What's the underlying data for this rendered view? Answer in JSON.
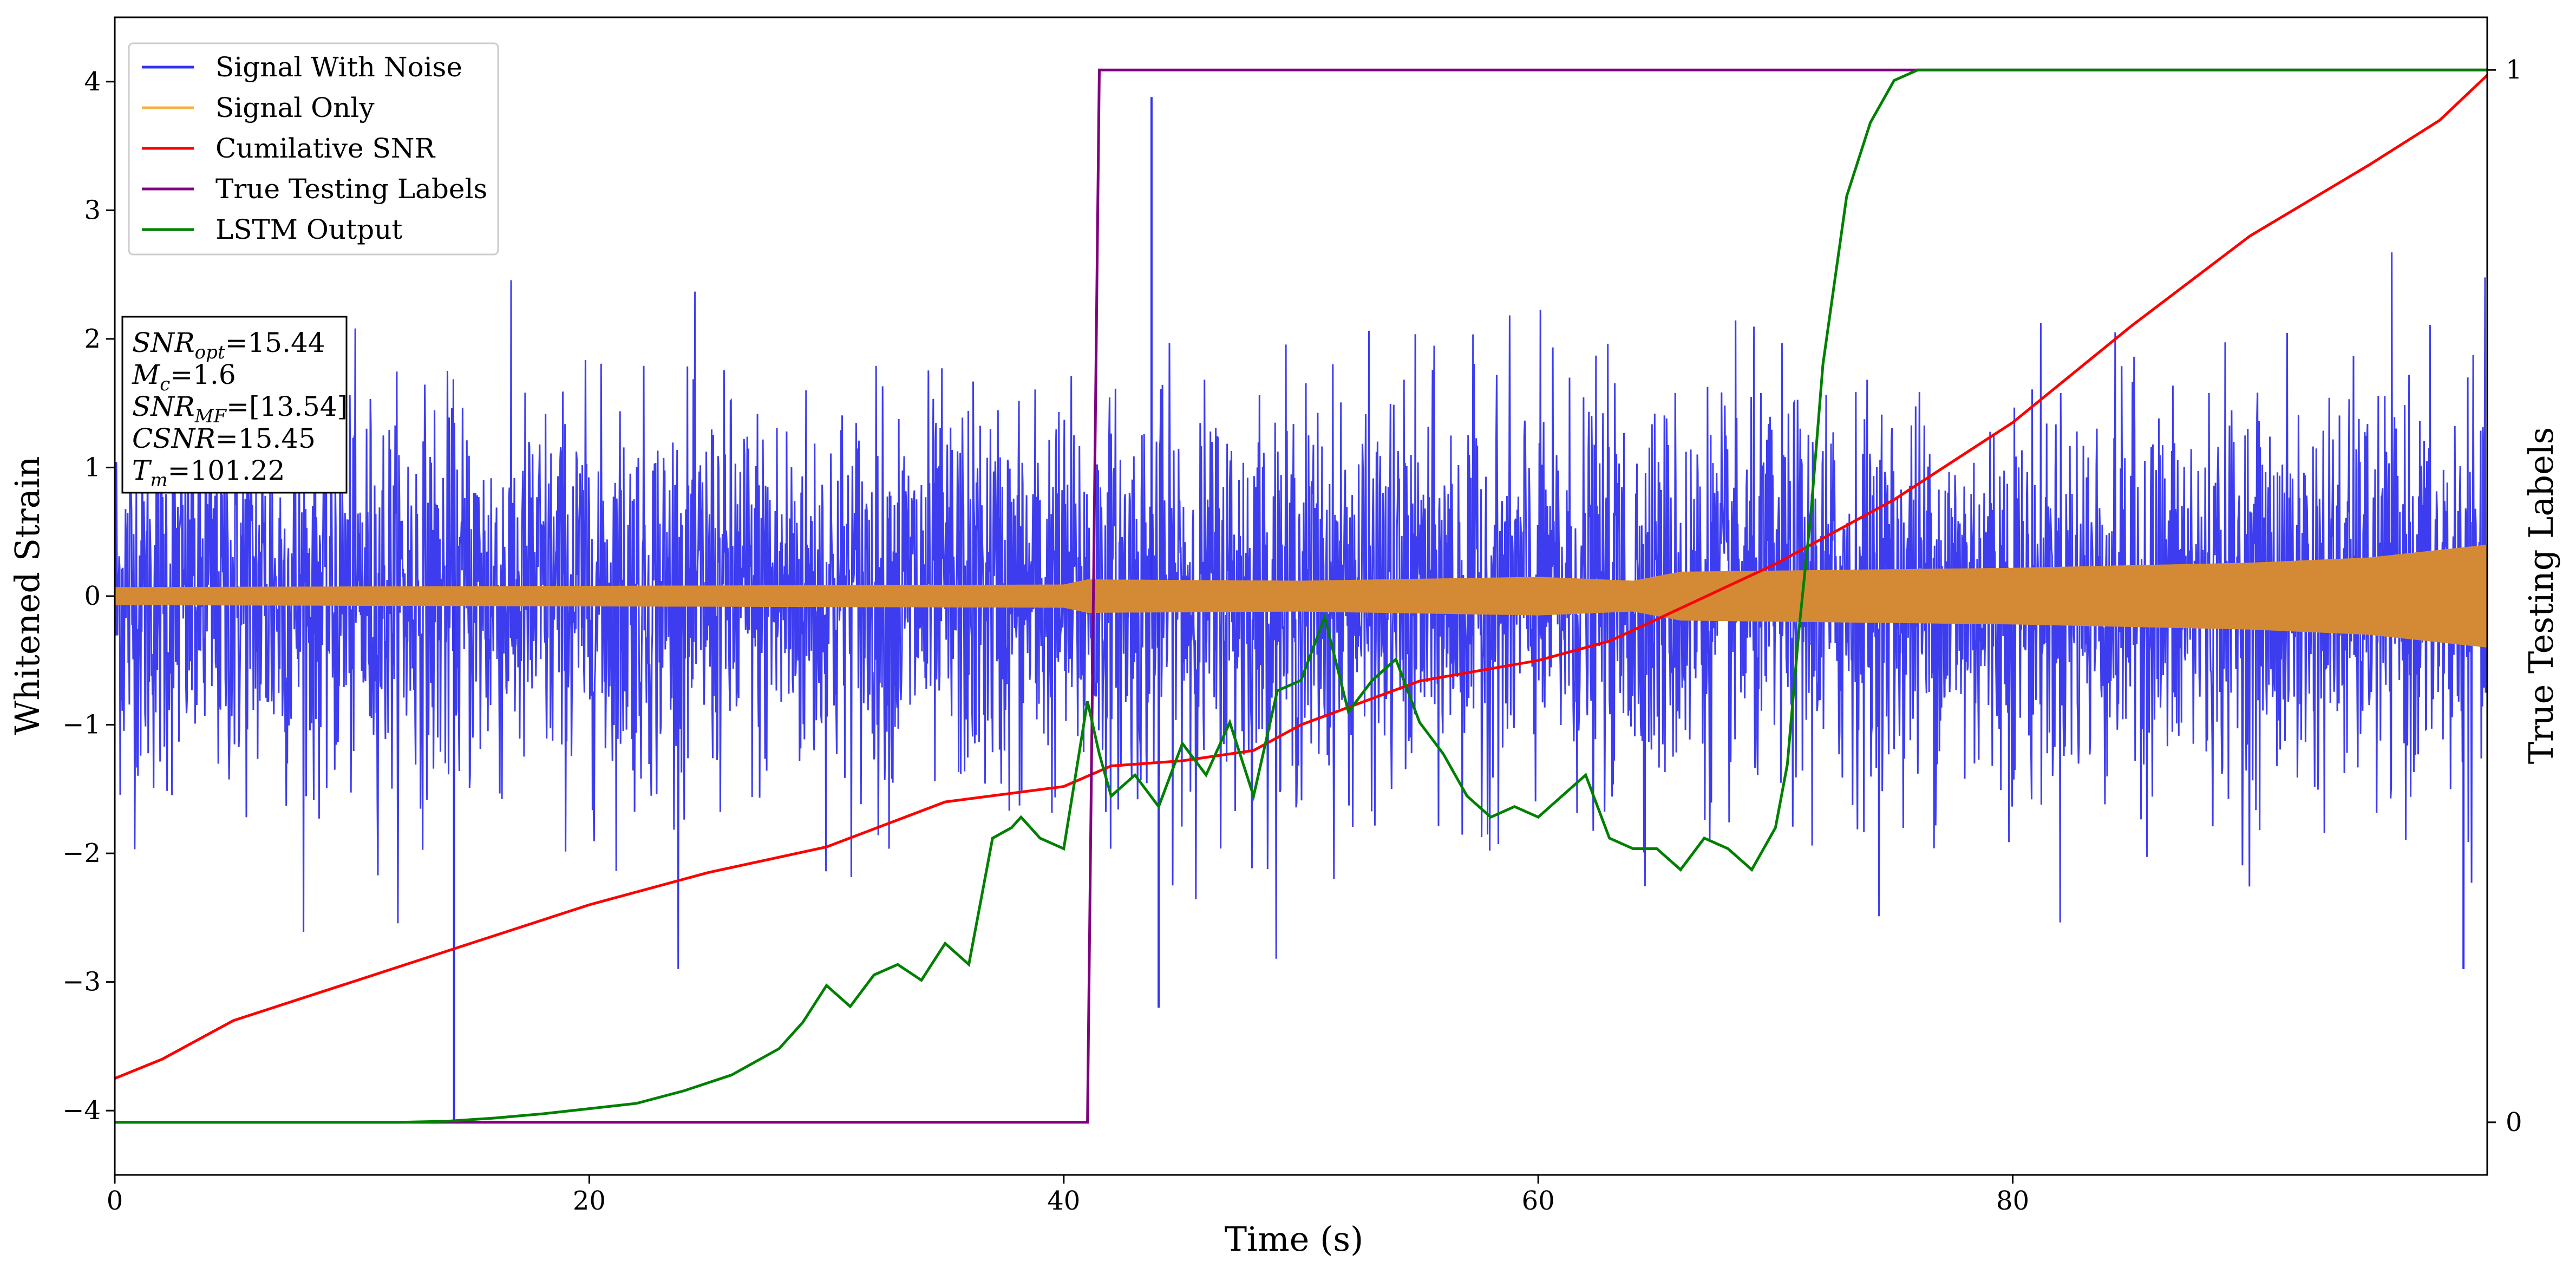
{
  "chart_data": {
    "type": "line",
    "title": "",
    "xlabel": "Time (s)",
    "ylabel_left": "Whitened Strain",
    "ylabel_right": "True Testing Labels",
    "xlim": [
      0,
      100
    ],
    "ylim_left": [
      -4.5,
      4.5
    ],
    "ylim_right": [
      -0.05,
      1.05
    ],
    "xticks": [
      "0",
      "20",
      "40",
      "60",
      "80"
    ],
    "yticks_left": [
      "−4",
      "−3",
      "−2",
      "−1",
      "0",
      "1",
      "2",
      "3",
      "4"
    ],
    "yticks_right": [
      "0",
      "1"
    ],
    "legend_placement": "upper-left",
    "legend": [
      {
        "name": "Signal With Noise",
        "color": "#3333ee"
      },
      {
        "name": "Signal Only",
        "color": "#f5b342"
      },
      {
        "name": "Cumilative SNR",
        "color": "#ff0000"
      },
      {
        "name": "True Testing Labels",
        "color": "#800080"
      },
      {
        "name": "LSTM Output",
        "color": "#008000"
      }
    ],
    "annotation": {
      "snr_opt": {
        "sym": "SNR",
        "sub": "opt",
        "val": "=15.44"
      },
      "mc": {
        "sym": "M",
        "sub": "c",
        "val": "=1.6"
      },
      "snr_mf": {
        "sym": "SNR",
        "sub": "MF",
        "val": "=[13.54]"
      },
      "csnr": {
        "sym": "CSNR",
        "sub": "",
        "val": "=15.45"
      },
      "tm": {
        "sym": "T",
        "sub": "m",
        "val": "=101.22"
      }
    },
    "signal_with_noise": {
      "axis": "left",
      "std_approx": 0.75,
      "notable_values": [
        [
          14.3,
          -4.1
        ],
        [
          43.7,
          3.88
        ],
        [
          44.0,
          -3.2
        ],
        [
          99.0,
          -2.9
        ]
      ]
    },
    "signal_only": {
      "axis": "left",
      "envelope": [
        [
          0,
          0.07
        ],
        [
          20,
          0.08
        ],
        [
          40,
          0.09
        ],
        [
          41,
          0.13
        ],
        [
          50,
          0.12
        ],
        [
          60,
          0.15
        ],
        [
          64,
          0.12
        ],
        [
          66,
          0.19
        ],
        [
          80,
          0.22
        ],
        [
          90,
          0.26
        ],
        [
          95,
          0.3
        ],
        [
          100,
          0.4
        ]
      ]
    },
    "cumulative_snr": {
      "axis": "left",
      "x": [
        0,
        2,
        5,
        10,
        15,
        20,
        25,
        30,
        35,
        40,
        42,
        45,
        48,
        50,
        55,
        60,
        63,
        65,
        70,
        75,
        80,
        85,
        90,
        95,
        98,
        100
      ],
      "y": [
        -3.75,
        -3.6,
        -3.3,
        -3.0,
        -2.7,
        -2.4,
        -2.15,
        -1.95,
        -1.6,
        -1.48,
        -1.32,
        -1.28,
        -1.2,
        -1.0,
        -0.66,
        -0.5,
        -0.35,
        -0.18,
        0.25,
        0.75,
        1.35,
        2.1,
        2.8,
        3.35,
        3.7,
        4.05
      ]
    },
    "true_testing_labels": {
      "axis": "right",
      "x": [
        0,
        41.0,
        41.5,
        100
      ],
      "y": [
        0,
        0,
        1,
        1
      ]
    },
    "lstm_output": {
      "axis": "right",
      "x": [
        0,
        12,
        14,
        16,
        18,
        20,
        22,
        24,
        26,
        28,
        29,
        30,
        31,
        32,
        33,
        34,
        35,
        36,
        37,
        37.8,
        38.2,
        39,
        40,
        41,
        41.5,
        42,
        43,
        44,
        45,
        46,
        47,
        48,
        49,
        50,
        51,
        52,
        53,
        54,
        55,
        56,
        57,
        58,
        59,
        60,
        61,
        62,
        63,
        64,
        65,
        66,
        67,
        68,
        69,
        70,
        70.5,
        71,
        71.5,
        72,
        72.5,
        73,
        74,
        75,
        76,
        78,
        80,
        85,
        100
      ],
      "y": [
        0,
        0,
        0.001,
        0.004,
        0.008,
        0.013,
        0.018,
        0.03,
        0.045,
        0.07,
        0.095,
        0.13,
        0.11,
        0.14,
        0.15,
        0.135,
        0.17,
        0.15,
        0.27,
        0.28,
        0.29,
        0.27,
        0.26,
        0.4,
        0.35,
        0.31,
        0.33,
        0.3,
        0.36,
        0.33,
        0.38,
        0.31,
        0.41,
        0.42,
        0.48,
        0.39,
        0.42,
        0.44,
        0.38,
        0.35,
        0.31,
        0.29,
        0.3,
        0.29,
        0.31,
        0.33,
        0.27,
        0.26,
        0.26,
        0.24,
        0.27,
        0.26,
        0.24,
        0.28,
        0.34,
        0.47,
        0.58,
        0.72,
        0.8,
        0.88,
        0.95,
        0.99,
        1.0,
        1.0,
        1.0,
        1.0,
        1.0
      ]
    }
  }
}
